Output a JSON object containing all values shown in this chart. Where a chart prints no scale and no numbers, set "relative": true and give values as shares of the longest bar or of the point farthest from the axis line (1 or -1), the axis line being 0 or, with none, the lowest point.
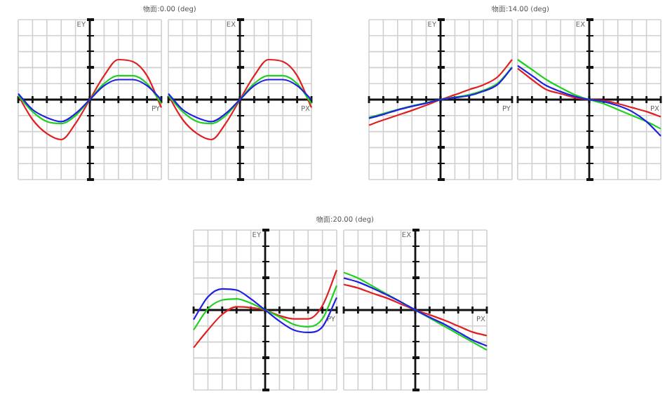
{
  "chart_data": [
    {
      "type": "line",
      "title": "物面:0.00 (deg)",
      "xlabel": "PY",
      "ylabel": "EY",
      "relative": true,
      "grid": true,
      "categories": [
        null,
        null,
        null,
        null,
        null,
        null,
        null,
        null,
        null,
        null,
        null
      ],
      "series": [
        {
          "color": "#2020e0",
          "values": [
            0.15,
            -0.25,
            -0.45,
            -0.55,
            -0.35,
            0,
            0.35,
            0.5,
            0.5,
            0.35,
            0
          ]
        },
        {
          "color": "#20d020",
          "values": [
            0.1,
            -0.3,
            -0.55,
            -0.6,
            -0.4,
            0,
            0.4,
            0.6,
            0.6,
            0.4,
            -0.1
          ]
        },
        {
          "color": "#e02020",
          "values": [
            0.1,
            -0.5,
            -0.85,
            -1,
            -0.6,
            0,
            0.6,
            1,
            0.95,
            0.6,
            -0.2
          ]
        }
      ]
    },
    {
      "type": "line",
      "xlabel": "PX",
      "ylabel": "EX",
      "relative": true,
      "grid": true,
      "categories": [
        null,
        null,
        null,
        null,
        null,
        null,
        null,
        null,
        null,
        null,
        null
      ],
      "series": [
        {
          "color": "#2020e0",
          "values": [
            0.15,
            -0.25,
            -0.45,
            -0.55,
            -0.35,
            0,
            0.35,
            0.5,
            0.5,
            0.35,
            0
          ]
        },
        {
          "color": "#20d020",
          "values": [
            0.1,
            -0.3,
            -0.55,
            -0.6,
            -0.4,
            0,
            0.4,
            0.6,
            0.6,
            0.4,
            -0.1
          ]
        },
        {
          "color": "#e02020",
          "values": [
            0.1,
            -0.5,
            -0.85,
            -1,
            -0.6,
            0,
            0.6,
            1,
            0.95,
            0.6,
            -0.2
          ]
        }
      ]
    },
    {
      "type": "line",
      "title": "物面:14.00 (deg)",
      "xlabel": "PY",
      "ylabel": "EY",
      "relative": true,
      "grid": true,
      "categories": [
        null,
        null,
        null,
        null,
        null,
        null,
        null,
        null,
        null,
        null,
        null
      ],
      "series": [
        {
          "color": "#2020e0",
          "values": [
            -0.47,
            -0.37,
            -0.26,
            -0.17,
            -0.09,
            0,
            0.05,
            0.1,
            0.21,
            0.38,
            0.8
          ]
        },
        {
          "color": "#20d020",
          "values": [
            -0.45,
            -0.35,
            -0.25,
            -0.16,
            -0.08,
            0,
            0.06,
            0.12,
            0.23,
            0.41,
            0.81
          ]
        },
        {
          "color": "#e02020",
          "values": [
            -0.64,
            -0.51,
            -0.39,
            -0.27,
            -0.14,
            0,
            0.12,
            0.25,
            0.37,
            0.57,
            1
          ]
        }
      ]
    },
    {
      "type": "line",
      "xlabel": "PX",
      "ylabel": "EX",
      "relative": true,
      "grid": true,
      "categories": [
        null,
        null,
        null,
        null,
        null,
        null,
        null,
        null,
        null,
        null,
        null
      ],
      "series": [
        {
          "color": "#2020e0",
          "values": [
            0.85,
            0.6,
            0.35,
            0.2,
            0.08,
            0,
            -0.05,
            -0.15,
            -0.3,
            -0.55,
            -0.91
          ]
        },
        {
          "color": "#20d020",
          "values": [
            1,
            0.75,
            0.5,
            0.3,
            0.12,
            0,
            -0.1,
            -0.25,
            -0.4,
            -0.55,
            -0.73
          ]
        },
        {
          "color": "#e02020",
          "values": [
            0.78,
            0.5,
            0.25,
            0.15,
            0.05,
            0,
            -0.03,
            -0.1,
            -0.2,
            -0.3,
            -0.43
          ]
        }
      ]
    },
    {
      "type": "line",
      "title": "物面:20.00 (deg)",
      "xlabel": "PY",
      "ylabel": "EY",
      "relative": true,
      "grid": true,
      "categories": [
        null,
        null,
        null,
        null,
        null,
        null,
        null,
        null,
        null,
        null,
        null
      ],
      "series": [
        {
          "color": "#2020e0",
          "values": [
            -0.24,
            0.33,
            0.53,
            0.5,
            0.28,
            0,
            -0.28,
            -0.5,
            -0.56,
            -0.42,
            0.31
          ]
        },
        {
          "color": "#20d020",
          "values": [
            -0.5,
            0.03,
            0.25,
            0.28,
            0.17,
            0,
            -0.17,
            -0.36,
            -0.42,
            -0.22,
            0.61
          ]
        },
        {
          "color": "#e02020",
          "values": [
            -0.94,
            -0.5,
            -0.11,
            0.08,
            0.06,
            0,
            -0.14,
            -0.22,
            -0.22,
            0.11,
            1
          ]
        }
      ]
    },
    {
      "type": "line",
      "xlabel": "PX",
      "ylabel": "EX",
      "relative": true,
      "grid": true,
      "categories": [
        null,
        null,
        null,
        null,
        null,
        null,
        null,
        null,
        null,
        null,
        null
      ],
      "series": [
        {
          "color": "#2020e0",
          "values": [
            0.8,
            0.7,
            0.55,
            0.38,
            0.2,
            0,
            -0.18,
            -0.35,
            -0.55,
            -0.75,
            -0.9
          ]
        },
        {
          "color": "#20d020",
          "values": [
            0.94,
            0.8,
            0.6,
            0.4,
            0.2,
            0,
            -0.2,
            -0.4,
            -0.6,
            -0.8,
            -1
          ]
        },
        {
          "color": "#e02020",
          "values": [
            0.64,
            0.55,
            0.42,
            0.3,
            0.15,
            0,
            -0.12,
            -0.25,
            -0.4,
            -0.55,
            -0.64
          ]
        }
      ]
    }
  ]
}
